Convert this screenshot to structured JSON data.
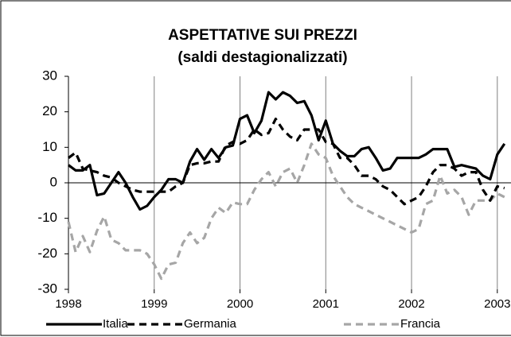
{
  "chart_data": {
    "type": "line",
    "title": "ASPETTATIVE SUI PREZZI",
    "subtitle": "(saldi destagionalizzati)",
    "categories": [
      "1998",
      null,
      null,
      null,
      null,
      null,
      null,
      null,
      null,
      null,
      null,
      null,
      "1999",
      null,
      null,
      null,
      null,
      null,
      null,
      null,
      null,
      null,
      null,
      null,
      "2000",
      null,
      null,
      null,
      null,
      null,
      null,
      null,
      null,
      null,
      null,
      null,
      "2001",
      null,
      null,
      null,
      null,
      null,
      null,
      null,
      null,
      null,
      null,
      null,
      "2002",
      null,
      null,
      null,
      null,
      null,
      null,
      null,
      null,
      null,
      null,
      null,
      "2003",
      null
    ],
    "series": [
      {
        "name": "Italia",
        "color": "#000000",
        "dash": false,
        "values": [
          5,
          3.5,
          3.5,
          5,
          -3.5,
          -3,
          0,
          3,
          0,
          -4,
          -7.5,
          -6.5,
          -4,
          -2,
          1,
          1,
          0,
          6,
          9.5,
          6.5,
          9.5,
          7,
          10,
          10.5,
          18,
          19,
          14,
          17.5,
          25.5,
          23.5,
          25.5,
          24.5,
          22.5,
          23,
          19,
          12,
          17.5,
          11,
          9,
          7.5,
          7.5,
          9.5,
          10,
          7,
          3.5,
          4,
          7,
          7,
          7,
          7,
          8,
          9.5,
          9.5,
          9.5,
          4.5,
          5,
          4.5,
          4,
          2,
          1,
          8,
          11
        ]
      },
      {
        "name": "Germania",
        "color": "#000000",
        "dash": true,
        "values": [
          7,
          8.5,
          4,
          3.5,
          3,
          2,
          1.5,
          0,
          -1,
          -2,
          -2.5,
          -2.5,
          -2.5,
          -2.5,
          -2.5,
          -1,
          0,
          5,
          5.5,
          5.5,
          6,
          6,
          10.5,
          11.5,
          11,
          12,
          15,
          13.5,
          14,
          18,
          15,
          13,
          12,
          15,
          15,
          15,
          11.5,
          11,
          7,
          7,
          5,
          2,
          2,
          1,
          -1,
          -2,
          -4,
          -6,
          -5,
          -4,
          -1,
          3,
          5,
          5,
          4,
          2,
          3,
          3,
          -2,
          -5,
          -1,
          -1.5
        ]
      },
      {
        "name": "Francia",
        "color": "#a6a6a6",
        "dash": true,
        "values": [
          -11,
          -19.5,
          -15,
          -19.5,
          -13.5,
          -9.5,
          -16,
          -17,
          -19,
          -19,
          -19,
          -20,
          -23,
          -27,
          -23,
          -22.5,
          -17,
          -14,
          -17,
          -15.5,
          -10,
          -7,
          -8.5,
          -5.5,
          -6,
          -6,
          -2,
          1,
          3,
          -1,
          3,
          4,
          0,
          5,
          11,
          8,
          7,
          2,
          -1,
          -4,
          -6,
          -7,
          -8,
          -9,
          -10,
          -11,
          -12,
          -13,
          -14,
          -13,
          -6,
          -5,
          2,
          -3,
          -2,
          -4,
          -9,
          -5,
          -5,
          -5,
          -3,
          -4
        ]
      }
    ],
    "ylim": [
      -30,
      30
    ],
    "yticks": [
      -30,
      -20,
      -10,
      0,
      10,
      20,
      30
    ],
    "grid": true,
    "legend": "bottom"
  }
}
